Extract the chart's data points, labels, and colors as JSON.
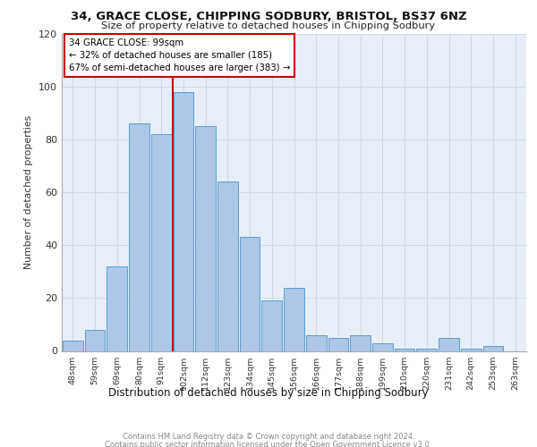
{
  "title1": "34, GRACE CLOSE, CHIPPING SODBURY, BRISTOL, BS37 6NZ",
  "title2": "Size of property relative to detached houses in Chipping Sodbury",
  "xlabel": "Distribution of detached houses by size in Chipping Sodbury",
  "ylabel": "Number of detached properties",
  "categories": [
    "48sqm",
    "59sqm",
    "69sqm",
    "80sqm",
    "91sqm",
    "102sqm",
    "112sqm",
    "123sqm",
    "134sqm",
    "145sqm",
    "156sqm",
    "166sqm",
    "177sqm",
    "188sqm",
    "199sqm",
    "210sqm",
    "220sqm",
    "231sqm",
    "242sqm",
    "253sqm",
    "263sqm"
  ],
  "values": [
    4,
    8,
    32,
    86,
    82,
    98,
    85,
    64,
    43,
    19,
    24,
    6,
    5,
    6,
    3,
    1,
    1,
    5,
    1,
    2,
    0
  ],
  "bar_color": "#aec6e8",
  "bar_edge_color": "#5a9fd4",
  "annotation_lines": [
    "← 32% of detached houses are smaller (185)",
    "67% of semi-detached houses are larger (383) →"
  ],
  "marker_label": "34 GRACE CLOSE: 99sqm",
  "annotation_box_color": "#ffffff",
  "annotation_box_edge_color": "#cc0000",
  "vline_color": "#cc0000",
  "vline_x_index": 5,
  "grid_color": "#cdd7ea",
  "background_color": "#e8eef8",
  "footer_line1": "Contains HM Land Registry data © Crown copyright and database right 2024.",
  "footer_line2": "Contains public sector information licensed under the Open Government Licence v3.0.",
  "ylim": [
    0,
    120
  ]
}
